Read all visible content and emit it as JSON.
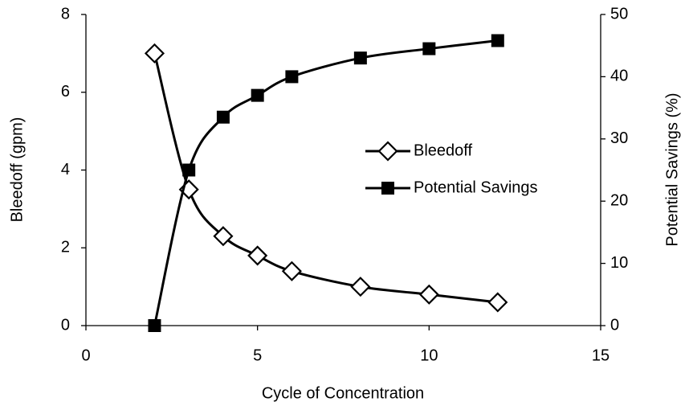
{
  "chart_data": {
    "type": "line",
    "x_label": "Cycle of Concentration",
    "y_label": "Bleedoff (gpm)",
    "y2_label": "Potential Savings (%)",
    "x": [
      2,
      3,
      4,
      5,
      6,
      8,
      10,
      12
    ],
    "series": [
      {
        "name": "Bleedoff",
        "color": "#000000",
        "marker": "diamond",
        "values": [
          7.0,
          3.5,
          2.3,
          1.8,
          1.4,
          1.0,
          0.8,
          0.6
        ]
      },
      {
        "name": "Potential Savings",
        "color": "#000000",
        "marker": "square",
        "axis": "y2",
        "values": [
          0,
          25,
          33.5,
          37,
          40,
          43,
          44.5,
          45.8
        ]
      }
    ],
    "xlim": [
      0,
      15
    ],
    "xticks": [
      0,
      5,
      10,
      15
    ],
    "ylim": [
      0,
      8
    ],
    "yticks": [
      0,
      2,
      4,
      6,
      8
    ],
    "y2lim": [
      0,
      50
    ],
    "y2ticks": [
      0,
      10,
      20,
      30,
      40,
      50
    ],
    "grid": false,
    "legend": "right"
  }
}
